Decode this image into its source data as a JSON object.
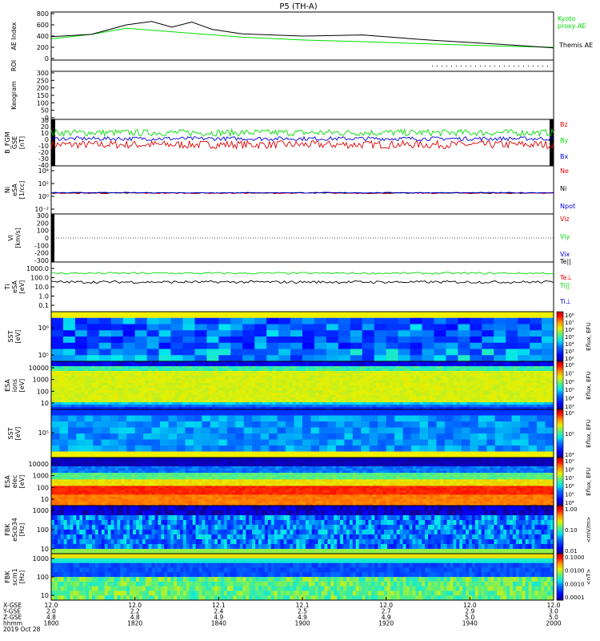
{
  "title": "P5 (TH-A)",
  "colors": {
    "green": "#00dd00",
    "red": "#e00000",
    "blue": "#0000e0",
    "black": "#000000"
  },
  "chart_data": [
    {
      "type": "line",
      "panel": "ae",
      "ylabel": "AE Index",
      "ylim": [
        0,
        800
      ],
      "yticks": [
        "800",
        "600",
        "400",
        "200",
        "0"
      ],
      "series": [
        {
          "name": "Kyoto proxy AE",
          "color": "green",
          "x": [
            0,
            8,
            15,
            25,
            38,
            50,
            62,
            75,
            90,
            100
          ],
          "values": [
            350,
            430,
            540,
            470,
            380,
            330,
            300,
            260,
            220,
            200
          ]
        },
        {
          "name": "Themis AE",
          "color": "black",
          "x": [
            0,
            8,
            15,
            20,
            24,
            28,
            32,
            38,
            50,
            62,
            75,
            90,
            100
          ],
          "values": [
            390,
            430,
            600,
            660,
            560,
            650,
            520,
            440,
            400,
            420,
            330,
            250,
            190
          ]
        }
      ],
      "legend": [
        "Kyoto",
        "proxy AE",
        "Themis AE"
      ]
    },
    {
      "type": "line",
      "panel": "roi",
      "ylabel": "ROI",
      "note": "dotted"
    },
    {
      "type": "heatmap",
      "panel": "keogram",
      "ylabel": "Keogram",
      "ylim": [
        0,
        300
      ],
      "yticks": [
        "300",
        "250",
        "200",
        "150",
        "100",
        "50",
        "0"
      ]
    },
    {
      "type": "line",
      "panel": "bfgm",
      "ylabel": [
        "B_FGM",
        "GSE",
        "[nT]"
      ],
      "ylim": [
        -40,
        30
      ],
      "yticks": [
        "30",
        "20",
        "10",
        "0",
        "-10",
        "-20",
        "-30",
        "-40"
      ],
      "series": [
        {
          "name": "Bz",
          "color": "red",
          "mean": -8
        },
        {
          "name": "By",
          "color": "green",
          "mean": 10
        },
        {
          "name": "Bx",
          "color": "blue",
          "mean": 1
        }
      ]
    },
    {
      "type": "line",
      "panel": "ni",
      "ylabel": [
        "Ni",
        "eSA",
        "[1/cc]"
      ],
      "yticks": [
        "10⁴",
        "10²",
        "10⁰",
        "10⁻²"
      ],
      "series": [
        {
          "name": "Ne",
          "color": "red"
        },
        {
          "name": "Ni",
          "color": "black"
        },
        {
          "name": "Npot",
          "color": "blue"
        }
      ]
    },
    {
      "type": "line",
      "panel": "vi",
      "ylabel": [
        "Vi",
        "[km/s]"
      ],
      "ylim": [
        -300,
        300
      ],
      "yticks": [
        "300",
        "200",
        "100",
        "0",
        "-100",
        "-200",
        "-300"
      ],
      "series": [
        {
          "name": "Viz",
          "color": "red"
        },
        {
          "name": "Viy",
          "color": "green"
        },
        {
          "name": "Vix",
          "color": "blue"
        }
      ]
    },
    {
      "type": "line",
      "panel": "ti",
      "ylabel": [
        "Ti",
        "eSA",
        "[eV]"
      ],
      "yticks": [
        "1000.0",
        "100.0",
        "10.0",
        "1.0",
        "0.1"
      ],
      "series": [
        {
          "name": "Te||",
          "color": "black"
        },
        {
          "name": "Te⊥",
          "color": "red"
        },
        {
          "name": "Ti||",
          "color": "green"
        },
        {
          "name": "Ti⊥",
          "color": "blue"
        }
      ]
    },
    {
      "type": "heatmap",
      "panel": "sst_i",
      "ylabel": [
        "SST",
        "[eV]"
      ],
      "yticks": [
        "10⁶",
        "10⁵"
      ],
      "colorbar": {
        "label": "Eflux, EFU",
        "ticks": [
          "10⁸",
          "10⁷",
          "10⁶",
          "10⁵",
          "10⁴",
          "10³",
          "10²"
        ]
      }
    },
    {
      "type": "heatmap",
      "panel": "esa_i",
      "ylabel": [
        "ESA",
        "ions",
        "[eV]"
      ],
      "yticks": [
        "10000",
        "1000",
        "100",
        "10"
      ],
      "colorbar": {
        "label": "Eflux, EFU",
        "ticks": [
          "10⁸",
          "10⁷",
          "10⁶",
          "10⁵",
          "10⁴",
          "10³"
        ]
      }
    },
    {
      "type": "heatmap",
      "panel": "sst_e",
      "ylabel": [
        "SST",
        "[eV]"
      ],
      "yticks": [
        "10⁵"
      ],
      "colorbar": {
        "label": "Eflux, EFU",
        "ticks": [
          "10⁶",
          "10⁵",
          "10⁴"
        ]
      }
    },
    {
      "type": "heatmap",
      "panel": "esa_e",
      "ylabel": [
        "ESA",
        "elec",
        "[eV]"
      ],
      "yticks": [
        "10000",
        "1000",
        "100",
        "10"
      ],
      "colorbar": {
        "label": "Eflux, EFU",
        "ticks": [
          "10⁹",
          "10⁸",
          "10⁷",
          "10⁶",
          "10⁵",
          "10⁴"
        ]
      }
    },
    {
      "type": "heatmap",
      "panel": "fbk_e",
      "ylabel": [
        "FBK",
        "eScb34",
        "[Hz]"
      ],
      "yticks": [
        "1000",
        "100",
        "10"
      ],
      "colorbar": {
        "label": "<mV/m>",
        "ticks": [
          "1.00",
          "0.10",
          "0.01"
        ]
      }
    },
    {
      "type": "heatmap",
      "panel": "fbk_b",
      "ylabel": [
        "FBK",
        "scm1",
        "[Hz]"
      ],
      "yticks": [
        "1000",
        "100",
        "10"
      ],
      "colorbar": {
        "label": "<nT>",
        "ticks": [
          "0.1000",
          "0.0100",
          "0.0010",
          "0.0001"
        ]
      }
    }
  ],
  "xaxis": {
    "row_labels": [
      "X-GSE",
      "Y-GSE",
      "Z-GSE",
      "hhmm",
      "2019 Oct 28"
    ],
    "ticks": [
      {
        "x": "12.0",
        "y": "2.0",
        "z": "4.8",
        "t": "1800"
      },
      {
        "x": "12.0",
        "y": "2.2",
        "z": "4.8",
        "t": "1820"
      },
      {
        "x": "12.1",
        "y": "2.4",
        "z": "4.9",
        "t": "1840"
      },
      {
        "x": "12.1",
        "y": "2.5",
        "z": "4.9",
        "t": "1900"
      },
      {
        "x": "12.0",
        "y": "2.7",
        "z": "4.9",
        "t": "1920"
      },
      {
        "x": "12.0",
        "y": "2.9",
        "z": "5.0",
        "t": "1940"
      },
      {
        "x": "12.0",
        "y": "3.0",
        "z": "5.0",
        "t": "2000"
      }
    ]
  }
}
